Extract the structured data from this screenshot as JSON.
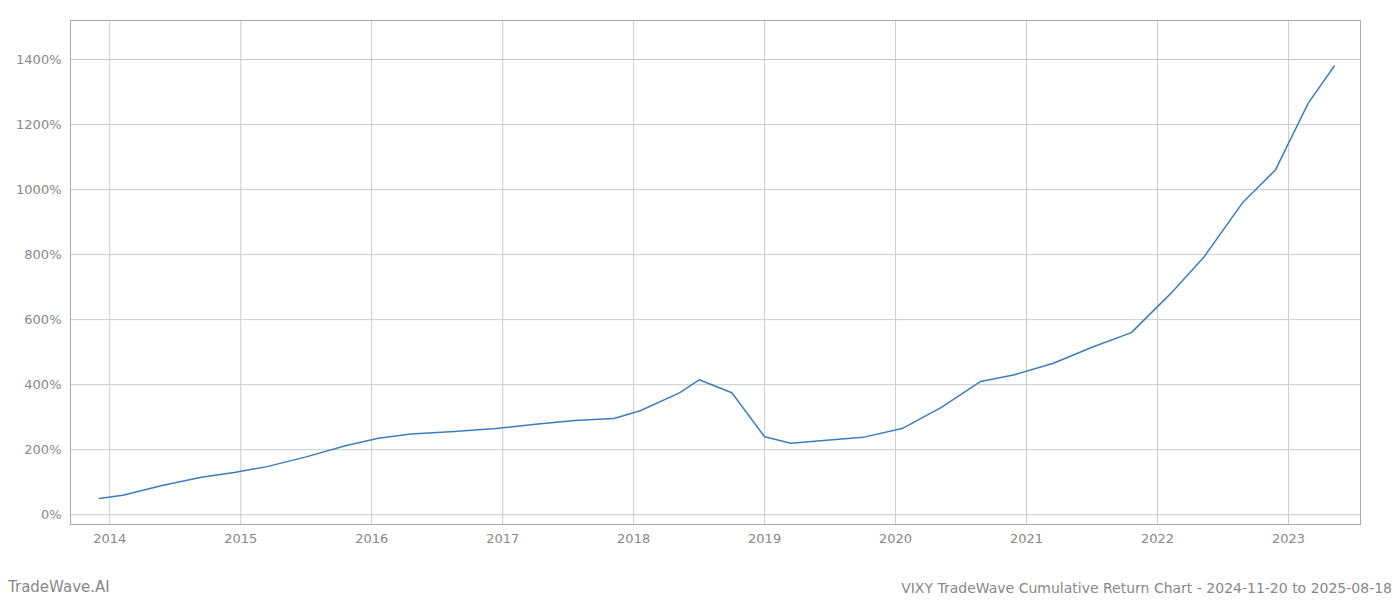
{
  "chart_data": {
    "type": "line",
    "title": "VIXY TradeWave Cumulative Return Chart - 2024-11-20 to 2025-08-18",
    "annotations": [
      "TradeWave.AI"
    ],
    "x": [
      2013.92,
      2014.1,
      2014.4,
      2014.7,
      2014.95,
      2015.2,
      2015.5,
      2015.8,
      2016.05,
      2016.3,
      2016.6,
      2016.95,
      2017.25,
      2017.55,
      2017.85,
      2018.05,
      2018.35,
      2018.5,
      2018.75,
      2019.0,
      2019.2,
      2019.45,
      2019.75,
      2020.05,
      2020.35,
      2020.65,
      2020.9,
      2021.2,
      2021.5,
      2021.8,
      2022.1,
      2022.35,
      2022.65,
      2022.9,
      2023.15,
      2023.35
    ],
    "values": [
      50,
      60,
      90,
      115,
      130,
      148,
      178,
      212,
      235,
      248,
      255,
      265,
      278,
      290,
      296,
      320,
      375,
      415,
      375,
      240,
      220,
      228,
      238,
      265,
      330,
      410,
      430,
      465,
      515,
      560,
      680,
      790,
      960,
      1060,
      1265,
      1380
    ],
    "color": "#3a7ebf",
    "xlim": [
      2013.7,
      2023.55
    ],
    "ylim": [
      -30,
      1520
    ],
    "xticks": [
      2014,
      2015,
      2016,
      2017,
      2018,
      2019,
      2020,
      2021,
      2022,
      2023
    ],
    "yticks": [
      {
        "value": 0,
        "label": "0%"
      },
      {
        "value": 200,
        "label": "200%"
      },
      {
        "value": 400,
        "label": "400%"
      },
      {
        "value": 600,
        "label": "600%"
      },
      {
        "value": 800,
        "label": "800%"
      },
      {
        "value": 1000,
        "label": "1000%"
      },
      {
        "value": 1200,
        "label": "1200%"
      },
      {
        "value": 1400,
        "label": "1400%"
      }
    ],
    "grid": true
  }
}
